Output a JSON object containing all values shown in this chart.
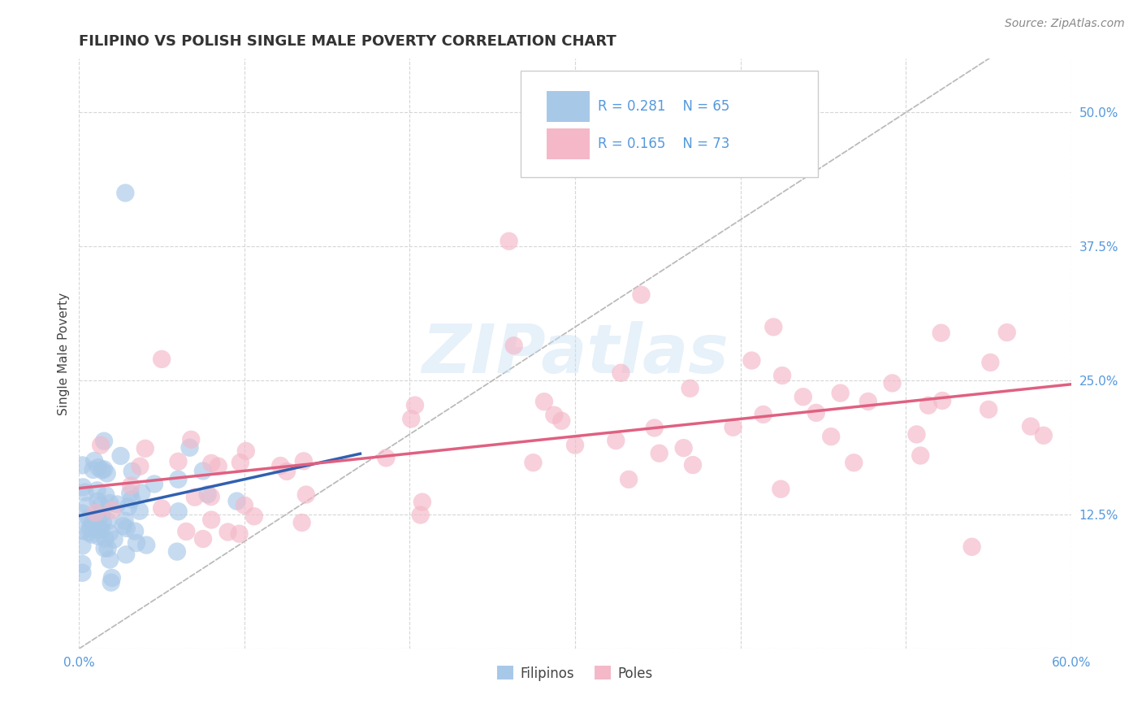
{
  "title": "FILIPINO VS POLISH SINGLE MALE POVERTY CORRELATION CHART",
  "source": "Source: ZipAtlas.com",
  "ylabel_label": "Single Male Poverty",
  "x_min": 0.0,
  "x_max": 0.6,
  "y_min": 0.0,
  "y_max": 0.55,
  "x_tick_labels": [
    "0.0%",
    "",
    "",
    "",
    "",
    "",
    "60.0%"
  ],
  "y_tick_labels": [
    "",
    "12.5%",
    "25.0%",
    "37.5%",
    "50.0%"
  ],
  "legend_r1": "R = 0.281",
  "legend_n1": "N = 65",
  "legend_r2": "R = 0.165",
  "legend_n2": "N = 73",
  "color_filipino": "#a8c8e8",
  "color_polish": "#f4b8c8",
  "line_color_filipino": "#3060b0",
  "line_color_polish": "#e06080",
  "diagonal_color": "#bbbbbb",
  "background_color": "#ffffff",
  "watermark_text": "ZIPatlas",
  "title_color": "#333333",
  "source_color": "#888888",
  "tick_color": "#5599dd",
  "title_fontsize": 13,
  "ylabel_fontsize": 11,
  "tick_fontsize": 11,
  "source_fontsize": 10
}
